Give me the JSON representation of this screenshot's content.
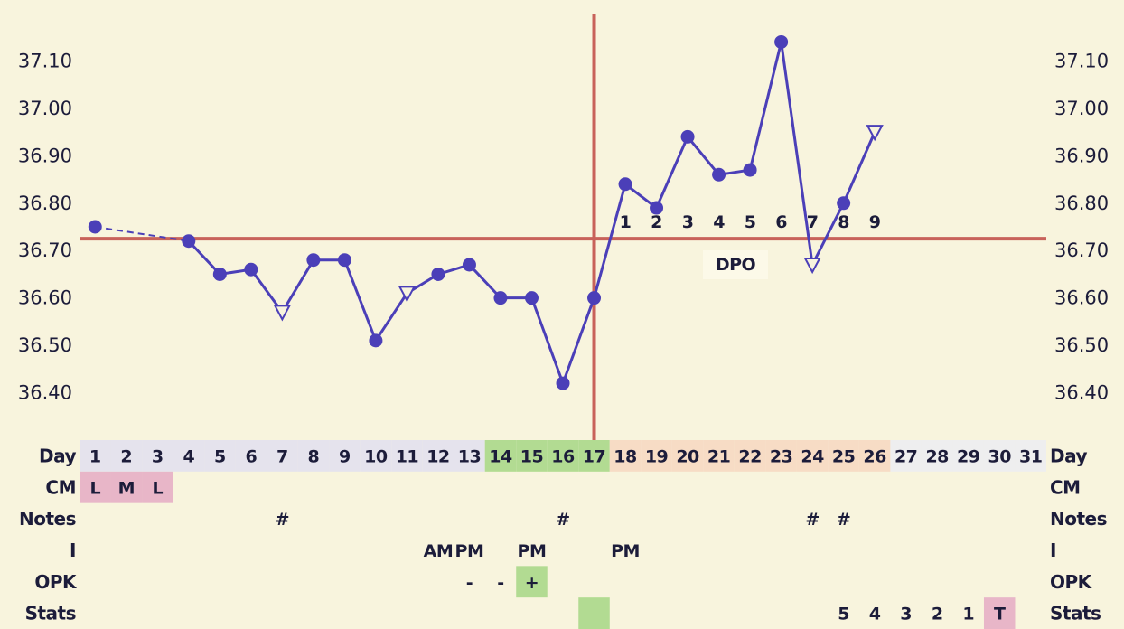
{
  "chart_data": {
    "type": "line",
    "ylim": [
      36.3,
      37.2
    ],
    "yticks": [
      {
        "value": 36.4,
        "label": "36.40"
      },
      {
        "value": 36.5,
        "label": "36.50"
      },
      {
        "value": 36.6,
        "label": "36.60"
      },
      {
        "value": 36.7,
        "label": "36.70"
      },
      {
        "value": 36.8,
        "label": "36.80"
      },
      {
        "value": 36.9,
        "label": "36.90"
      },
      {
        "value": 37.0,
        "label": "37.00"
      },
      {
        "value": 37.1,
        "label": "37.10"
      }
    ],
    "minor_yticks": [
      36.3,
      36.35,
      36.45,
      36.55,
      36.65,
      36.75,
      36.85,
      36.95,
      37.05,
      37.15,
      37.2
    ],
    "grid": true,
    "day_label": "Day",
    "categories": [
      1,
      2,
      3,
      4,
      5,
      6,
      7,
      8,
      9,
      10,
      11,
      12,
      13,
      14,
      15,
      16,
      17,
      18,
      19,
      20,
      21,
      22,
      23,
      24,
      25,
      26,
      27,
      28,
      29,
      30,
      31
    ],
    "day_colors": [
      "#e5e3ed",
      "#e5e3ed",
      "#e5e3ed",
      "#e5e3ed",
      "#e5e3ed",
      "#e5e3ed",
      "#e5e3ed",
      "#e5e3ed",
      "#e5e3ed",
      "#e5e3ed",
      "#e5e3ed",
      "#e5e3ed",
      "#e5e3ed",
      "#b2db92",
      "#b2db92",
      "#b2db92",
      "#b2db92",
      "#f7dcc5",
      "#f7dcc5",
      "#f7dcc5",
      "#f7dcc5",
      "#f7dcc5",
      "#f7dcc5",
      "#f7dcc5",
      "#f7dcc5",
      "#f7dcc5",
      "#eeeeef",
      "#eeeeef",
      "#eeeeef",
      "#eeeeef",
      "#eeeeef"
    ],
    "series": [
      {
        "color": "#4b3fb8",
        "values": [
          36.75,
          null,
          null,
          36.72,
          36.65,
          36.66,
          36.57,
          36.68,
          36.68,
          36.51,
          36.61,
          36.65,
          36.67,
          36.6,
          36.6,
          36.42,
          36.6,
          36.84,
          36.79,
          36.94,
          36.86,
          36.87,
          37.14,
          36.67,
          36.8,
          36.95,
          null,
          null,
          null,
          null,
          null
        ],
        "open_days": [
          7,
          11,
          24,
          26
        ]
      }
    ],
    "coverline": 36.725,
    "ovulation_day": 17,
    "line_marker_color": "#c8625a",
    "dpo": {
      "label": "DPO",
      "days": [
        18,
        19,
        20,
        21,
        22,
        23,
        24,
        25,
        26
      ],
      "values": [
        1,
        2,
        3,
        4,
        5,
        6,
        7,
        8,
        9
      ]
    },
    "rows": [
      {
        "label": "CM",
        "cells": [
          {
            "day": 1,
            "text": "L",
            "color": "#e8b6c8"
          },
          {
            "day": 2,
            "text": "M",
            "color": "#e8b6c8"
          },
          {
            "day": 3,
            "text": "L",
            "color": "#e8b6c8"
          }
        ]
      },
      {
        "label": "Notes",
        "cells": [
          {
            "day": 7,
            "text": "#"
          },
          {
            "day": 16,
            "text": "#"
          },
          {
            "day": 24,
            "text": "#"
          },
          {
            "day": 25,
            "text": "#"
          }
        ]
      },
      {
        "label": "I",
        "cells": [
          {
            "day": 12,
            "text": "AM"
          },
          {
            "day": 13,
            "text": "PM"
          },
          {
            "day": 15,
            "text": "PM"
          },
          {
            "day": 18,
            "text": "PM"
          }
        ]
      },
      {
        "label": "OPK",
        "cells": [
          {
            "day": 13,
            "text": "-"
          },
          {
            "day": 14,
            "text": "-"
          },
          {
            "day": 15,
            "text": "+",
            "color": "#b2db92"
          }
        ]
      },
      {
        "label": "Stats",
        "cells": [
          {
            "day": 17,
            "color": "#b2db92"
          },
          {
            "day": 25,
            "text": 5
          },
          {
            "day": 26,
            "text": 4
          },
          {
            "day": 27,
            "text": 3
          },
          {
            "day": 28,
            "text": 2
          },
          {
            "day": 29,
            "text": 1
          },
          {
            "day": 30,
            "text": "T",
            "color": "#e8b6c8"
          }
        ]
      }
    ]
  }
}
